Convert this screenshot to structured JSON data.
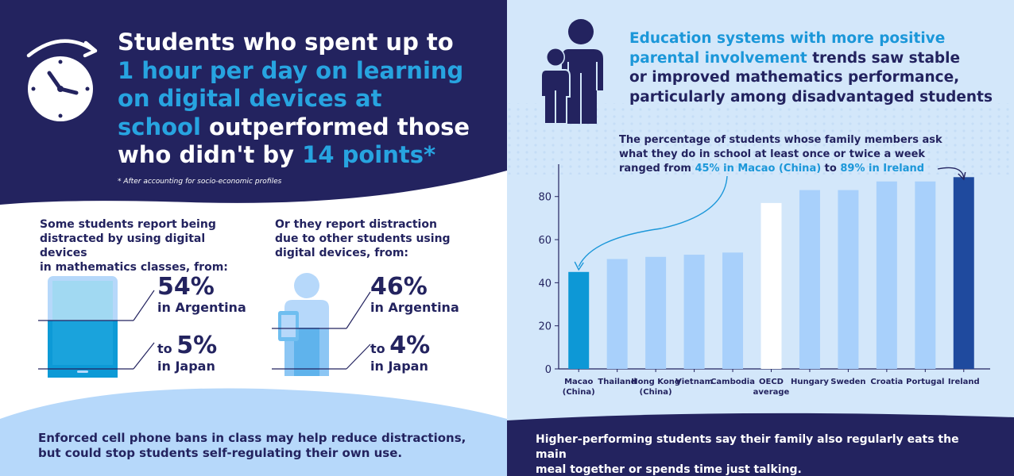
{
  "left": {
    "headline": {
      "l1": "Students who spent up to",
      "l2": "1 hour per day on learning",
      "l3": "on digital devices at",
      "l4a": "school",
      "l4b": " outperformed those",
      "l5a": "who didn't by ",
      "l5b": "14 points*"
    },
    "footnote": "* After accounting for socio-economic profiles",
    "col1": {
      "caption_lines": [
        "Some students report being",
        "distracted by using digital devices",
        "in mathematics classes, from:"
      ],
      "stat1_value": "54%",
      "stat1_label": "in Argentina",
      "stat2_prefix": "to ",
      "stat2_value": "5%",
      "stat2_label": "in Japan"
    },
    "col2": {
      "caption_lines": [
        "Or they report distraction",
        "due to other students using",
        "digital devices, from:"
      ],
      "stat1_value": "46%",
      "stat1_label": "in Argentina",
      "stat2_prefix": "to ",
      "stat2_value": "4%",
      "stat2_label": "in Japan"
    },
    "bottom_lines": [
      "Enforced cell phone bans in class may help reduce distractions,",
      "but could stop students self-regulating their own use."
    ]
  },
  "right": {
    "title": {
      "l1": "Education systems with more positive",
      "l2a": "parental involvement",
      "l2b": " trends saw stable",
      "l3": "or improved mathematics performance,",
      "l4": "particularly among disadvantaged students"
    },
    "annotation": {
      "l1": "The percentage of students whose family members ask",
      "l2": "what they do in school at least once or twice a week",
      "l3a": "ranged from ",
      "l3b": "45% in Macao (China)",
      "l3c": " to ",
      "l3d": "89% in Ireland"
    },
    "bottom_lines": [
      "Higher-performing students say their family also regularly eats the main",
      "meal together or spends time just talking."
    ]
  },
  "colors": {
    "navy": "#23235f",
    "accent_blue": "#27a4e0",
    "bar_light": "#a8d0fb",
    "bar_macao": "#0d98d6",
    "bar_ireland": "#1f4a9e",
    "bar_oecd": "#ffffff",
    "bg_right": "#d3e7fa"
  },
  "icons": [
    "clock-icon",
    "tablet-icon",
    "student-with-tablet-icon",
    "family-icon"
  ],
  "chart_data": {
    "type": "bar",
    "categories": [
      "Macao\n(China)",
      "Thailand",
      "Hong Kong\n(China)",
      "Vietnam",
      "Cambodia",
      "OECD\naverage",
      "Hungary",
      "Sweden",
      "Croatia",
      "Portugal",
      "Ireland"
    ],
    "values": [
      45,
      51,
      52,
      53,
      54,
      77,
      83,
      83,
      87,
      87,
      89
    ],
    "highlight": {
      "Macao\n(China)": "#0d98d6",
      "OECD\naverage": "#ffffff",
      "Ireland": "#1f4a9e"
    },
    "yticks": [
      0,
      20,
      40,
      60,
      80
    ],
    "ylim": [
      0,
      95
    ],
    "grid": false,
    "title": "",
    "xlabel": "",
    "ylabel": ""
  }
}
